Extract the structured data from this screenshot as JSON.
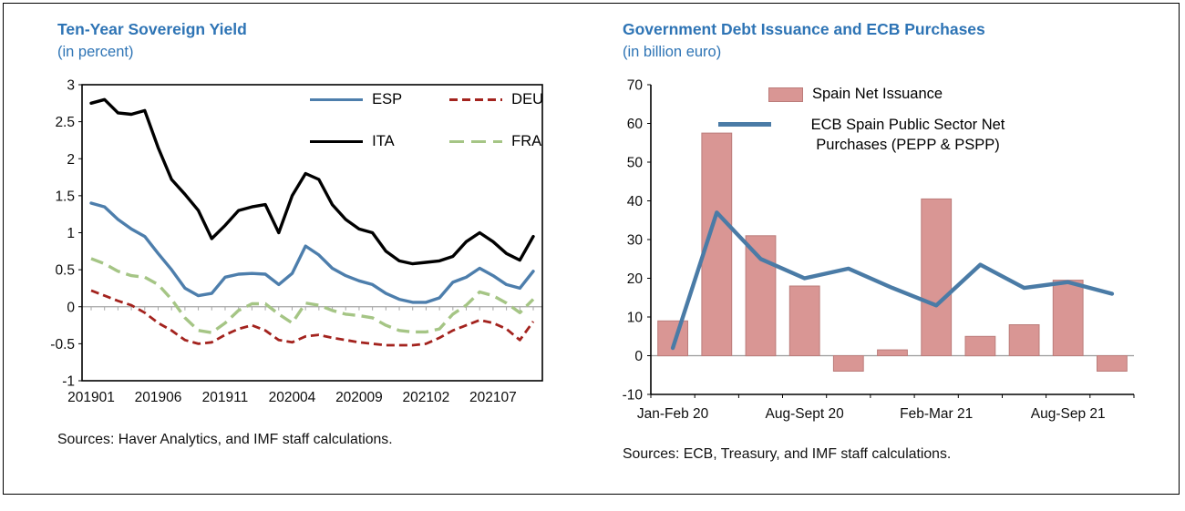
{
  "figure": {
    "background": "#ffffff",
    "border_color": "#000000"
  },
  "chart_data": [
    {
      "id": "sovereign_yield",
      "type": "line",
      "title": "Ten-Year Sovereign Yield",
      "subtitle": "(in percent)",
      "title_color": "#2e74b5",
      "source": "Sources: Haver Analytics, and IMF staff calculations.",
      "ylim": [
        -1,
        3
      ],
      "y_ticks": [
        3,
        2.5,
        2,
        1.5,
        1,
        0.5,
        0,
        -0.5,
        -1
      ],
      "x_tick_labels": [
        "201901",
        "201906",
        "201911",
        "202004",
        "202009",
        "202102",
        "202107"
      ],
      "x_tick_indices": [
        0,
        5,
        10,
        15,
        20,
        25,
        30
      ],
      "n_points": 34,
      "grid": "zero-line-only",
      "legend_position": "inside-top-right",
      "zero_line_color": "#a6a6a6",
      "series": [
        {
          "name": "ESP",
          "color": "#4d7eac",
          "dash": "solid",
          "values": [
            1.4,
            1.35,
            1.18,
            1.05,
            0.95,
            0.72,
            0.5,
            0.25,
            0.15,
            0.18,
            0.4,
            0.44,
            0.45,
            0.44,
            0.3,
            0.45,
            0.82,
            0.7,
            0.52,
            0.42,
            0.35,
            0.3,
            0.18,
            0.1,
            0.06,
            0.06,
            0.12,
            0.33,
            0.4,
            0.52,
            0.42,
            0.3,
            0.25,
            0.48
          ]
        },
        {
          "name": "DEU",
          "color": "#a3231e",
          "dash": "dash",
          "values": [
            0.22,
            0.15,
            0.08,
            0.02,
            -0.08,
            -0.22,
            -0.32,
            -0.45,
            -0.5,
            -0.48,
            -0.38,
            -0.3,
            -0.25,
            -0.32,
            -0.45,
            -0.48,
            -0.4,
            -0.38,
            -0.42,
            -0.45,
            -0.48,
            -0.5,
            -0.52,
            -0.52,
            -0.52,
            -0.5,
            -0.42,
            -0.32,
            -0.25,
            -0.18,
            -0.22,
            -0.3,
            -0.45,
            -0.2
          ]
        },
        {
          "name": "ITA",
          "color": "#000000",
          "dash": "solid",
          "values": [
            2.75,
            2.8,
            2.62,
            2.6,
            2.65,
            2.15,
            1.72,
            1.52,
            1.3,
            0.92,
            1.1,
            1.3,
            1.35,
            1.38,
            1.0,
            1.5,
            1.8,
            1.72,
            1.38,
            1.18,
            1.05,
            1.0,
            0.75,
            0.62,
            0.58,
            0.6,
            0.62,
            0.68,
            0.88,
            1.0,
            0.88,
            0.72,
            0.63,
            0.95
          ]
        },
        {
          "name": "FRA",
          "color": "#a5c585",
          "dash": "longdash",
          "values": [
            0.65,
            0.58,
            0.48,
            0.42,
            0.4,
            0.3,
            0.1,
            -0.15,
            -0.32,
            -0.35,
            -0.22,
            -0.05,
            0.04,
            0.04,
            -0.1,
            -0.22,
            0.05,
            0.02,
            -0.05,
            -0.1,
            -0.12,
            -0.15,
            -0.25,
            -0.32,
            -0.34,
            -0.34,
            -0.3,
            -0.1,
            0.02,
            0.2,
            0.15,
            0.05,
            -0.08,
            0.1
          ]
        }
      ]
    },
    {
      "id": "debt_issuance_ecb",
      "type": "bar+line",
      "title": "Government Debt Issuance and ECB Purchases",
      "subtitle": "(in billion euro)",
      "title_color": "#2e74b5",
      "source": "Sources: ECB, Treasury, and IMF staff calculations.",
      "ylim": [
        -10,
        70
      ],
      "y_ticks": [
        70,
        60,
        50,
        40,
        30,
        20,
        10,
        0,
        -10
      ],
      "x_tick_labels": [
        "Jan-Feb 20",
        "Aug-Sept 20",
        "Feb-Mar 21",
        "Aug-Sep 21"
      ],
      "x_tick_indices": [
        0,
        3,
        6,
        9
      ],
      "grid": "zero-line-only",
      "zero_line_color": "#9a9a9a",
      "legend_position": "inside-top",
      "bar_series": {
        "name": "Spain Net Issuance",
        "color": "#d99694",
        "border_color": "#bb7c7a",
        "values": [
          9,
          57.5,
          31,
          18,
          -4,
          1.5,
          40.5,
          5,
          8,
          19.5,
          -4
        ]
      },
      "line_series": {
        "name": "ECB Spain Public Sector Net Purchases (PEPP & PSPP)",
        "color": "#4a7ba6",
        "values": [
          2,
          37,
          25,
          20,
          22.5,
          17.5,
          13,
          23.5,
          17.5,
          19,
          16
        ]
      }
    }
  ]
}
